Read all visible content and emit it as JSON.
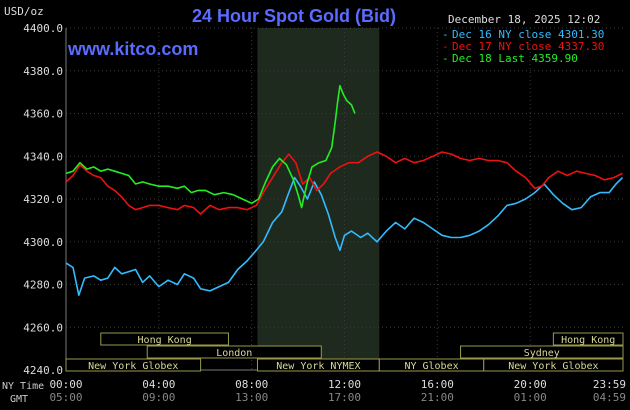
{
  "header": {
    "title": "24 Hour Spot Gold (Bid)",
    "website": "www.kitco.com",
    "units": "USD/oz",
    "date": "December 18, 2025 12:02"
  },
  "legend": [
    {
      "label": "Dec 16 NY close 4301.30",
      "color": "#33bbff"
    },
    {
      "label": "Dec 17 NY close 4337.30",
      "color": "#ee1111"
    },
    {
      "label": "Dec 18 Last 4359.90",
      "color": "#22ee22"
    }
  ],
  "axis_labels": {
    "ny_time": "NY Time",
    "gmt": "GMT"
  },
  "sessions": [
    {
      "row": 0,
      "label": "Hong Kong",
      "from": 1.5,
      "to": 7.0
    },
    {
      "row": 0,
      "label": "Hong Kong",
      "from": 21.0,
      "to": 24.0
    },
    {
      "row": 1,
      "label": "London",
      "from": 3.5,
      "to": 11.0
    },
    {
      "row": 1,
      "label": "Sydney",
      "from": 17.0,
      "to": 24.0
    },
    {
      "row": 2,
      "label": "New York Globex",
      "from": 0.0,
      "to": 5.8
    },
    {
      "row": 2,
      "label": "New York NYMEX",
      "from": 8.25,
      "to": 13.5
    },
    {
      "row": 2,
      "label": "NY Globex",
      "from": 13.5,
      "to": 18.0
    },
    {
      "row": 2,
      "label": "New York Globex",
      "from": 18.0,
      "to": 24.0
    }
  ],
  "chart_data": {
    "type": "line",
    "title": "24 Hour Spot Gold (Bid)",
    "ylabel": "USD/oz",
    "ylim": [
      4240,
      4400
    ],
    "y_ticks": [
      "4400.0",
      "4380.0",
      "4360.0",
      "4340.0",
      "4320.0",
      "4300.0",
      "4280.0",
      "4260.0",
      "4240.0"
    ],
    "xlim": [
      0,
      24
    ],
    "x_ticks_ny": [
      "00:00",
      "04:00",
      "08:00",
      "12:00",
      "16:00",
      "20:00",
      "23:59"
    ],
    "x_ticks_gmt": [
      "05:00",
      "09:00",
      "13:00",
      "17:00",
      "21:00",
      "01:00",
      "04:59"
    ],
    "grid": true,
    "shaded_hours": [
      8.25,
      13.5
    ],
    "series": [
      {
        "name": "Dec 16 NY close 4301.30",
        "color": "#33bbff",
        "points": [
          [
            0.0,
            4290
          ],
          [
            0.3,
            4288
          ],
          [
            0.55,
            4275
          ],
          [
            0.8,
            4283
          ],
          [
            1.2,
            4284
          ],
          [
            1.5,
            4282
          ],
          [
            1.8,
            4283
          ],
          [
            2.1,
            4288
          ],
          [
            2.4,
            4285
          ],
          [
            2.7,
            4286
          ],
          [
            3.0,
            4287
          ],
          [
            3.3,
            4281
          ],
          [
            3.6,
            4284
          ],
          [
            4.0,
            4279
          ],
          [
            4.4,
            4282
          ],
          [
            4.8,
            4280
          ],
          [
            5.1,
            4285
          ],
          [
            5.5,
            4283
          ],
          [
            5.8,
            4278
          ],
          [
            6.2,
            4277
          ],
          [
            6.6,
            4279
          ],
          [
            7.0,
            4281
          ],
          [
            7.4,
            4287
          ],
          [
            7.8,
            4291
          ],
          [
            8.2,
            4296
          ],
          [
            8.5,
            4300
          ],
          [
            8.9,
            4309
          ],
          [
            9.3,
            4314
          ],
          [
            9.6,
            4323
          ],
          [
            9.85,
            4330
          ],
          [
            10.1,
            4326
          ],
          [
            10.4,
            4320
          ],
          [
            10.7,
            4328
          ],
          [
            11.0,
            4322
          ],
          [
            11.3,
            4313
          ],
          [
            11.6,
            4302
          ],
          [
            11.8,
            4296
          ],
          [
            12.0,
            4303
          ],
          [
            12.3,
            4305
          ],
          [
            12.7,
            4302
          ],
          [
            13.0,
            4304
          ],
          [
            13.4,
            4300
          ],
          [
            13.8,
            4305
          ],
          [
            14.2,
            4309
          ],
          [
            14.6,
            4306
          ],
          [
            15.0,
            4311
          ],
          [
            15.4,
            4309
          ],
          [
            15.8,
            4306
          ],
          [
            16.2,
            4303
          ],
          [
            16.6,
            4302
          ],
          [
            17.0,
            4302
          ],
          [
            17.4,
            4303
          ],
          [
            17.8,
            4305
          ],
          [
            18.2,
            4308
          ],
          [
            18.6,
            4312
          ],
          [
            19.0,
            4317
          ],
          [
            19.4,
            4318
          ],
          [
            19.8,
            4320
          ],
          [
            20.2,
            4323
          ],
          [
            20.6,
            4327
          ],
          [
            21.0,
            4322
          ],
          [
            21.4,
            4318
          ],
          [
            21.8,
            4315
          ],
          [
            22.2,
            4316
          ],
          [
            22.6,
            4321
          ],
          [
            23.0,
            4323
          ],
          [
            23.4,
            4323
          ],
          [
            23.7,
            4327
          ],
          [
            23.98,
            4330
          ]
        ]
      },
      {
        "name": "Dec 17 NY close 4337.30",
        "color": "#ee1111",
        "points": [
          [
            0.0,
            4328
          ],
          [
            0.3,
            4331
          ],
          [
            0.6,
            4336
          ],
          [
            0.9,
            4333
          ],
          [
            1.2,
            4331
          ],
          [
            1.5,
            4330
          ],
          [
            1.8,
            4326
          ],
          [
            2.1,
            4324
          ],
          [
            2.4,
            4321
          ],
          [
            2.7,
            4317
          ],
          [
            3.0,
            4315
          ],
          [
            3.3,
            4316
          ],
          [
            3.6,
            4317
          ],
          [
            4.0,
            4317
          ],
          [
            4.4,
            4316
          ],
          [
            4.8,
            4315
          ],
          [
            5.1,
            4317
          ],
          [
            5.5,
            4316
          ],
          [
            5.8,
            4313
          ],
          [
            6.2,
            4317
          ],
          [
            6.6,
            4315
          ],
          [
            7.0,
            4316
          ],
          [
            7.4,
            4316
          ],
          [
            7.8,
            4315
          ],
          [
            8.2,
            4317
          ],
          [
            8.5,
            4323
          ],
          [
            8.9,
            4330
          ],
          [
            9.3,
            4337
          ],
          [
            9.6,
            4341
          ],
          [
            9.9,
            4337
          ],
          [
            10.2,
            4327
          ],
          [
            10.5,
            4330
          ],
          [
            10.8,
            4324
          ],
          [
            11.1,
            4327
          ],
          [
            11.4,
            4332
          ],
          [
            11.8,
            4335
          ],
          [
            12.2,
            4337
          ],
          [
            12.6,
            4337
          ],
          [
            13.0,
            4340
          ],
          [
            13.4,
            4342
          ],
          [
            13.8,
            4340
          ],
          [
            14.2,
            4337
          ],
          [
            14.6,
            4339
          ],
          [
            15.0,
            4337
          ],
          [
            15.4,
            4338
          ],
          [
            15.8,
            4340
          ],
          [
            16.2,
            4342
          ],
          [
            16.6,
            4341
          ],
          [
            17.0,
            4339
          ],
          [
            17.4,
            4338
          ],
          [
            17.8,
            4339
          ],
          [
            18.2,
            4338
          ],
          [
            18.6,
            4338
          ],
          [
            19.0,
            4337
          ],
          [
            19.4,
            4333
          ],
          [
            19.8,
            4330
          ],
          [
            20.2,
            4325
          ],
          [
            20.5,
            4326
          ],
          [
            20.8,
            4330
          ],
          [
            21.2,
            4333
          ],
          [
            21.6,
            4331
          ],
          [
            22.0,
            4333
          ],
          [
            22.4,
            4332
          ],
          [
            22.8,
            4331
          ],
          [
            23.2,
            4329
          ],
          [
            23.6,
            4330
          ],
          [
            23.98,
            4332
          ]
        ]
      },
      {
        "name": "Dec 18 Last 4359.90",
        "color": "#22ee22",
        "points": [
          [
            0.0,
            4332
          ],
          [
            0.3,
            4333
          ],
          [
            0.6,
            4337
          ],
          [
            0.9,
            4334
          ],
          [
            1.2,
            4335
          ],
          [
            1.5,
            4333
          ],
          [
            1.8,
            4334
          ],
          [
            2.1,
            4333
          ],
          [
            2.4,
            4332
          ],
          [
            2.7,
            4331
          ],
          [
            3.0,
            4327
          ],
          [
            3.3,
            4328
          ],
          [
            3.6,
            4327
          ],
          [
            4.0,
            4326
          ],
          [
            4.4,
            4326
          ],
          [
            4.8,
            4325
          ],
          [
            5.1,
            4326
          ],
          [
            5.4,
            4323
          ],
          [
            5.7,
            4324
          ],
          [
            6.0,
            4324
          ],
          [
            6.4,
            4322
          ],
          [
            6.8,
            4323
          ],
          [
            7.2,
            4322
          ],
          [
            7.6,
            4320
          ],
          [
            8.0,
            4318
          ],
          [
            8.3,
            4320
          ],
          [
            8.6,
            4328
          ],
          [
            8.9,
            4335
          ],
          [
            9.2,
            4339
          ],
          [
            9.5,
            4336
          ],
          [
            9.8,
            4329
          ],
          [
            10.0,
            4322
          ],
          [
            10.15,
            4316
          ],
          [
            10.4,
            4328
          ],
          [
            10.6,
            4335
          ],
          [
            10.9,
            4337
          ],
          [
            11.2,
            4338
          ],
          [
            11.45,
            4344
          ],
          [
            11.6,
            4356
          ],
          [
            11.7,
            4365
          ],
          [
            11.8,
            4373
          ],
          [
            11.95,
            4369
          ],
          [
            12.1,
            4366
          ],
          [
            12.3,
            4364
          ],
          [
            12.45,
            4360
          ]
        ]
      }
    ]
  }
}
